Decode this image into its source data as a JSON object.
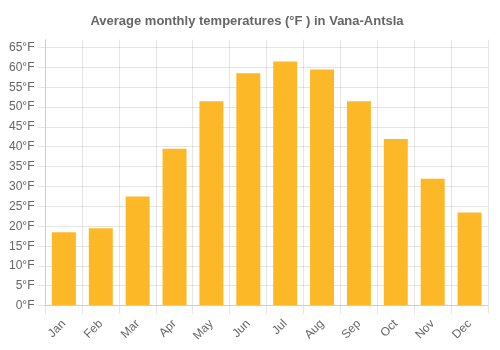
{
  "chart_data": {
    "type": "bar",
    "title": "Average monthly temperatures (°F ) in Vana-Antsla",
    "categories": [
      "Jan",
      "Feb",
      "Mar",
      "Apr",
      "May",
      "Jun",
      "Jul",
      "Aug",
      "Sep",
      "Oct",
      "Nov",
      "Dec"
    ],
    "values": [
      18.5,
      19.5,
      27.5,
      39.5,
      51.5,
      58.5,
      61.5,
      59.5,
      51.5,
      42.0,
      32.0,
      23.5
    ],
    "color": "#FDB827",
    "ylim": [
      0,
      67
    ],
    "yticks": [
      {
        "value": 0,
        "label": "0°F"
      },
      {
        "value": 5,
        "label": "5°F"
      },
      {
        "value": 10,
        "label": "10°F"
      },
      {
        "value": 15,
        "label": "15°F"
      },
      {
        "value": 20,
        "label": "20°F"
      },
      {
        "value": 25,
        "label": "25°F"
      },
      {
        "value": 30,
        "label": "30°F"
      },
      {
        "value": 35,
        "label": "35°F"
      },
      {
        "value": 40,
        "label": "40°F"
      },
      {
        "value": 45,
        "label": "45°F"
      },
      {
        "value": 50,
        "label": "50°F"
      },
      {
        "value": 55,
        "label": "55°F"
      },
      {
        "value": 60,
        "label": "60°F"
      },
      {
        "value": 65,
        "label": "65°F"
      }
    ],
    "grid": true
  }
}
